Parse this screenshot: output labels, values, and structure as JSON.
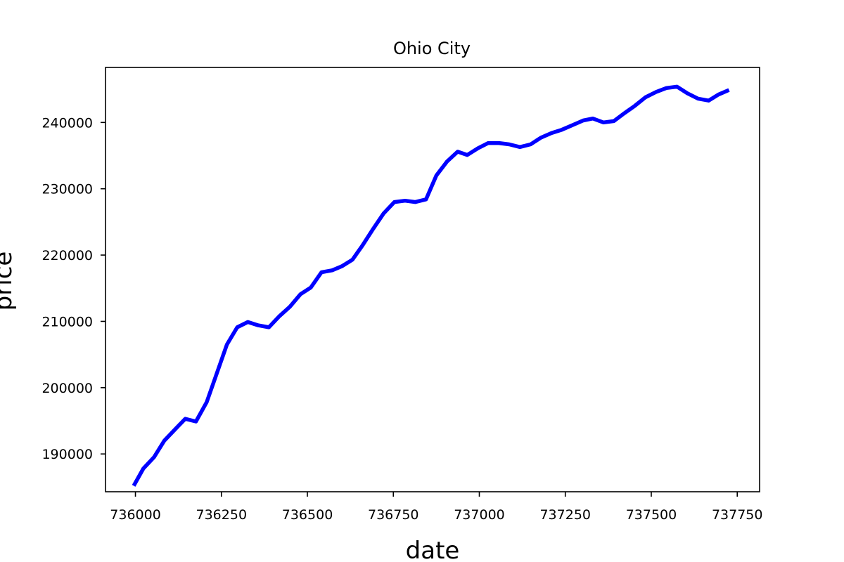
{
  "chart_data": {
    "type": "line",
    "title": "Ohio City",
    "xlabel": "date",
    "ylabel": "price",
    "xlim": [
      735913,
      737815
    ],
    "ylim": [
      184300,
      248300
    ],
    "x_ticks": [
      736000,
      736250,
      736500,
      736750,
      737000,
      737250,
      737500,
      737750
    ],
    "x_tick_labels": [
      "736000",
      "736250",
      "736500",
      "736750",
      "737000",
      "737250",
      "737500",
      "737750"
    ],
    "y_ticks": [
      190000,
      200000,
      210000,
      220000,
      230000,
      240000
    ],
    "y_tick_labels": [
      "190000",
      "200000",
      "210000",
      "220000",
      "230000",
      "240000"
    ],
    "grid": false,
    "legend": "none",
    "series": [
      {
        "color": "#0000ff",
        "x": [
          735995,
          736023,
          736054,
          736084,
          736115,
          736145,
          736176,
          736207,
          736235,
          736266,
          736296,
          736327,
          736357,
          736388,
          736419,
          736449,
          736480,
          736510,
          736541,
          736572,
          736600,
          736631,
          736661,
          736692,
          736722,
          736753,
          736784,
          736814,
          736845,
          736875,
          736906,
          736937,
          736965,
          736996,
          737026,
          737057,
          737087,
          737118,
          737149,
          737179,
          737210,
          737240,
          737271,
          737302,
          737330,
          737361,
          737391,
          737422,
          737452,
          737483,
          737514,
          737544,
          737575,
          737605,
          737636,
          737667,
          737695,
          737726
        ],
        "y": [
          185200,
          187800,
          189500,
          192000,
          193700,
          195300,
          194900,
          197800,
          201900,
          206500,
          209100,
          209900,
          209400,
          209100,
          210800,
          212200,
          214100,
          215100,
          217400,
          217700,
          218300,
          219300,
          221500,
          224000,
          226300,
          228000,
          228200,
          228000,
          228400,
          232000,
          234100,
          235600,
          235100,
          236100,
          236900,
          236900,
          236700,
          236300,
          236700,
          237700,
          238400,
          238900,
          239600,
          240300,
          240600,
          240000,
          240200,
          241400,
          242500,
          243800,
          244600,
          245200,
          245400,
          244400,
          243600,
          243300,
          244200,
          244900
        ]
      }
    ]
  }
}
